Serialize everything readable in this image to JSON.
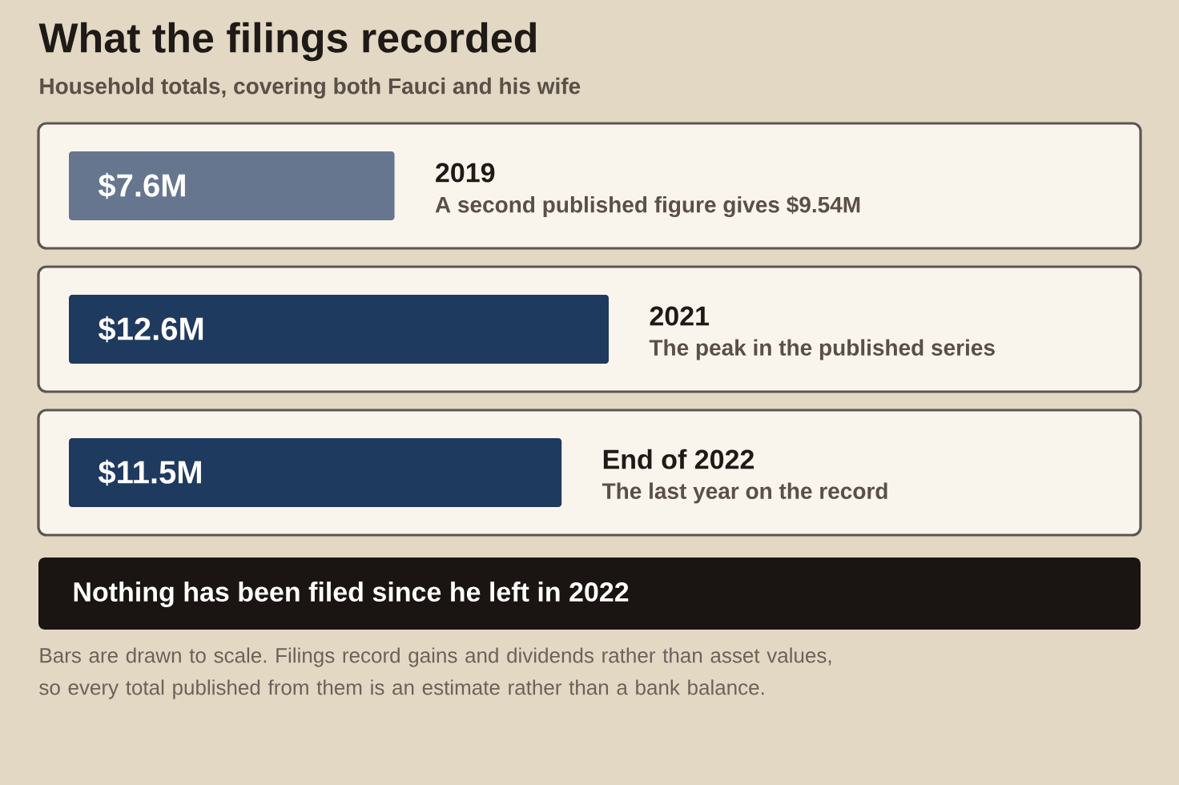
{
  "chart_data": {
    "type": "bar",
    "orientation": "horizontal",
    "title": "What the filings recorded",
    "subtitle": "Household totals, covering both Fauci and his wife",
    "categories": [
      "2019",
      "2021",
      "End of 2022"
    ],
    "values": [
      7.6,
      12.6,
      11.5
    ],
    "colors": [
      "#66768f",
      "#1f3a5f",
      "#1f3a5f"
    ],
    "value_labels": [
      "$7.6M",
      "$12.6M",
      "$11.5M"
    ],
    "annotations": [
      "A second published figure gives $9.54M",
      "The peak in the published series",
      "The last year on the record",
      "Nothing has been filed since he left in 2022",
      "Bars are drawn to scale. Filings record gains and dividends rather than asset values, so every total published from them is an estimate rather than a bank balance."
    ]
  }
}
